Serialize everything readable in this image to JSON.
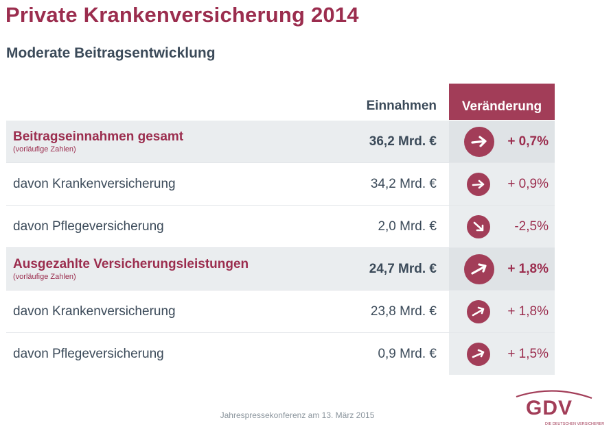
{
  "title": "Private Krankenversicherung 2014",
  "subtitle": "Moderate Beitragsentwicklung",
  "colors": {
    "accent": "#a23d58",
    "text": "#3b4a59",
    "rowShade": "#eaedef"
  },
  "table": {
    "header_income": "Einnahmen",
    "header_change": "Veränderung",
    "rows": [
      {
        "label": "Beitragseinnahmen gesamt",
        "note": "(vorläufige Zahlen)",
        "value": "36,2 Mrd. €",
        "change": "+ 0,7%",
        "direction": "right"
      },
      {
        "label": "davon Krankenversicherung",
        "note": "",
        "value": "34,2 Mrd. €",
        "change": "+ 0,9%",
        "direction": "right"
      },
      {
        "label": "davon Pflegeversicherung",
        "note": "",
        "value": "2,0 Mrd. €",
        "change": "-2,5%",
        "direction": "down-right"
      },
      {
        "label": "Ausgezahlte Versicherungsleistungen",
        "note": "(vorläufige Zahlen)",
        "value": "24,7 Mrd. €",
        "change": "+ 1,8%",
        "direction": "up-right"
      },
      {
        "label": "davon Krankenversicherung",
        "note": "",
        "value": "23,8 Mrd. €",
        "change": "+ 1,8%",
        "direction": "up-right"
      },
      {
        "label": "davon Pflegeversicherung",
        "note": "",
        "value": "0,9 Mrd. €",
        "change": "+ 1,5%",
        "direction": "up-right"
      }
    ]
  },
  "footer": "Jahrespressekonferenz am 13. März 2015",
  "logo": {
    "name": "GDV",
    "tagline": "DIE DEUTSCHEN VERSICHERER"
  },
  "icons": {
    "arrow_right": "arrow-right-icon",
    "arrow_down_right": "arrow-down-right-icon",
    "arrow_up_right": "arrow-up-right-icon"
  }
}
